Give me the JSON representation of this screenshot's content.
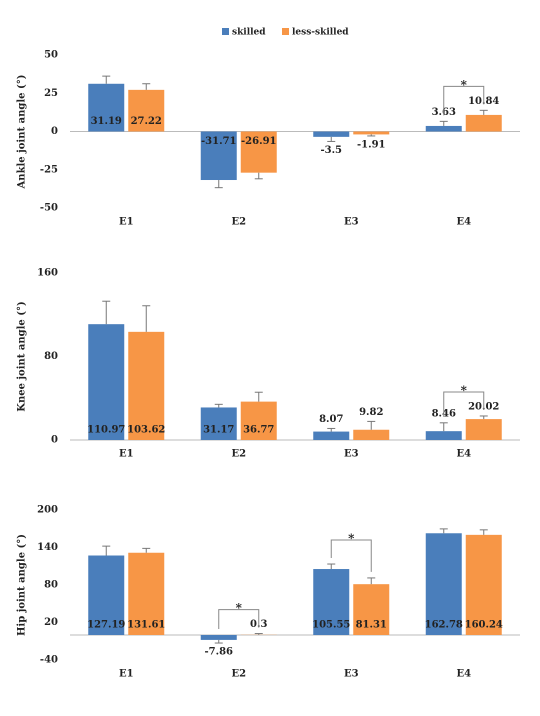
{
  "legend": {
    "items": [
      {
        "name": "skilled",
        "color": "#4a7ebb"
      },
      {
        "name": "less-skilled",
        "color": "#f79646"
      }
    ]
  },
  "chart_data": [
    {
      "type": "bar",
      "y_label": "Ankle joint angle (°)",
      "categories": [
        "E1",
        "E2",
        "E3",
        "E4"
      ],
      "series": [
        {
          "values": [
            31.19,
            -31.71,
            -3.5,
            3.63
          ],
          "errors": [
            5,
            5,
            3,
            3
          ]
        },
        {
          "values": [
            27.22,
            -26.91,
            -1.91,
            10.84
          ],
          "errors": [
            4,
            4,
            1,
            3
          ]
        }
      ],
      "ylim": [
        -50,
        50
      ],
      "yticks": [
        -50,
        -25,
        0,
        25,
        50
      ],
      "annotations": [
        {
          "text": "*",
          "category": "E4"
        }
      ]
    },
    {
      "type": "bar",
      "y_label": "Knee joint angle (°)",
      "categories": [
        "E1",
        "E2",
        "E3",
        "E4"
      ],
      "series": [
        {
          "values": [
            110.97,
            31.17,
            8.07,
            8.46
          ],
          "errors": [
            22,
            3,
            3,
            8
          ]
        },
        {
          "values": [
            103.62,
            36.77,
            9.82,
            20.02
          ],
          "errors": [
            25,
            9,
            8,
            3
          ]
        }
      ],
      "ylim": [
        0,
        160
      ],
      "yticks": [
        0,
        80,
        160
      ],
      "annotations": [
        {
          "text": "*",
          "category": "E4"
        }
      ]
    },
    {
      "type": "bar",
      "y_label": "Hip joint angle (°)",
      "categories": [
        "E1",
        "E2",
        "E3",
        "E4"
      ],
      "series": [
        {
          "values": [
            127.19,
            -7.86,
            105.55,
            162.78
          ],
          "errors": [
            15,
            5,
            8,
            7
          ]
        },
        {
          "values": [
            131.61,
            0.3,
            81.31,
            160.24
          ],
          "errors": [
            7,
            2,
            10,
            8
          ]
        }
      ],
      "ylim": [
        -40,
        200
      ],
      "yticks": [
        -40,
        20,
        80,
        140,
        200
      ],
      "annotations": [
        {
          "text": "*",
          "category": "E2"
        },
        {
          "text": "*",
          "category": "E3"
        }
      ]
    }
  ]
}
